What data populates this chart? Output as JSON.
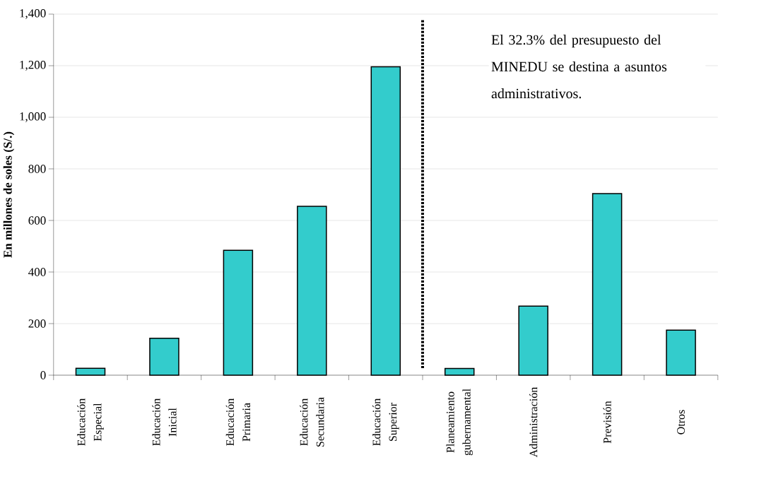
{
  "chart_data": {
    "type": "bar",
    "ylabel": "En millones de soles (S/.)",
    "categories": [
      "Educación Especial",
      "Educación Inicial",
      "Educación Primaria",
      "Educación Secundaria",
      "Educación Superior",
      "Planeamiento gubernamental",
      "Administración",
      "Previsión",
      "Otros"
    ],
    "values": [
      27,
      143,
      484,
      655,
      1196,
      26,
      268,
      704,
      175
    ],
    "color": "#33cccc",
    "ylim": [
      0,
      1400
    ],
    "yticks": [
      0,
      200,
      400,
      600,
      800,
      {
        "value": 1000,
        "label": "1,000"
      },
      {
        "value": 1200,
        "label": "1,200"
      },
      {
        "value": 1400,
        "label": "1,400"
      }
    ],
    "grid": "y",
    "annotations": [
      "El 32.3% del presupuesto del MINEDU se destina a asuntos administrativos."
    ]
  }
}
